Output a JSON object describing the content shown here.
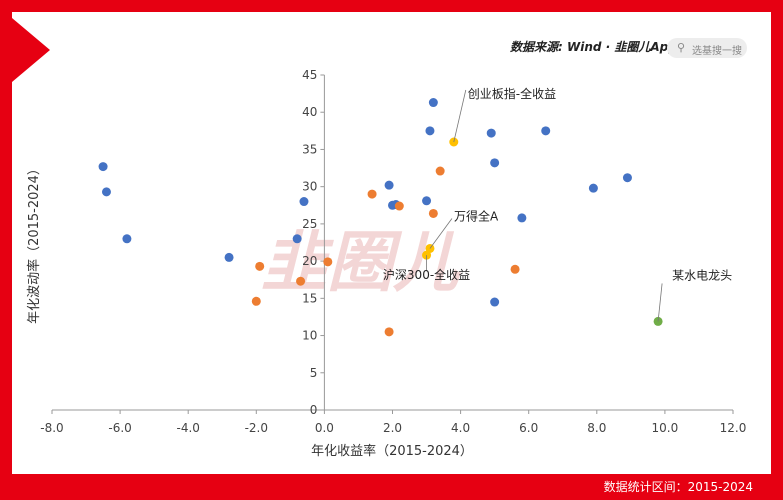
{
  "header": {
    "source_text": "数据来源: Wind · 韭圈儿App",
    "search_placeholder": "选基搜一搜",
    "search_icon": "search-icon"
  },
  "footer": {
    "range_text": "数据统计区间：2015-2024"
  },
  "watermark": {
    "text": "韭圈儿",
    "color": "#f3d6d6"
  },
  "colors": {
    "frame": "#e60012",
    "blue": "#4472c4",
    "orange": "#ed7d31",
    "yellow": "#ffc000",
    "green": "#70ad47"
  },
  "chart_data": {
    "type": "scatter",
    "xlabel": "年化收益率（2015-2024）",
    "ylabel": "年化波动率（2015-2024）",
    "xlim": [
      -8,
      12
    ],
    "ylim": [
      0,
      45
    ],
    "x_ticks": [
      "-8.0",
      "-6.0",
      "-4.0",
      "-2.0",
      "0.0",
      "2.0",
      "4.0",
      "6.0",
      "8.0",
      "10.0",
      "12.0"
    ],
    "y_ticks": [
      "0",
      "5",
      "10",
      "15",
      "20",
      "25",
      "30",
      "35",
      "40",
      "45"
    ],
    "grid": false,
    "series": [
      {
        "color": "#4472c4",
        "points": [
          [
            -6.5,
            32.7
          ],
          [
            -6.4,
            29.3
          ],
          [
            -5.8,
            23.0
          ],
          [
            -2.8,
            20.5
          ],
          [
            -0.8,
            23.0
          ],
          [
            -0.6,
            28.0
          ],
          [
            1.9,
            30.2
          ],
          [
            2.0,
            27.5
          ],
          [
            2.1,
            27.6
          ],
          [
            3.0,
            28.1
          ],
          [
            3.1,
            37.5
          ],
          [
            3.2,
            41.3
          ],
          [
            4.9,
            37.2
          ],
          [
            5.0,
            33.2
          ],
          [
            5.0,
            14.5
          ],
          [
            5.8,
            25.8
          ],
          [
            6.5,
            37.5
          ],
          [
            7.9,
            29.8
          ],
          [
            8.9,
            31.2
          ]
        ]
      },
      {
        "color": "#ed7d31",
        "points": [
          [
            -2.0,
            14.6
          ],
          [
            -1.9,
            19.3
          ],
          [
            -0.7,
            17.3
          ],
          [
            0.1,
            19.9
          ],
          [
            1.4,
            29.0
          ],
          [
            1.9,
            10.5
          ],
          [
            2.2,
            27.4
          ],
          [
            3.2,
            26.4
          ],
          [
            3.4,
            32.1
          ],
          [
            5.6,
            18.9
          ]
        ]
      },
      {
        "color": "#ffc000",
        "points": [
          [
            3.8,
            36.0
          ],
          [
            3.1,
            21.7
          ],
          [
            3.0,
            20.8
          ]
        ]
      },
      {
        "color": "#70ad47",
        "points": [
          [
            9.8,
            11.9
          ]
        ]
      }
    ],
    "annotations": [
      {
        "text": "创业板指-全收益",
        "x": 3.8,
        "y": 36.0
      },
      {
        "text": "万得全A",
        "x": 3.1,
        "y": 21.7
      },
      {
        "text": "沪深300-全收益",
        "x": 3.0,
        "y": 20.8
      },
      {
        "text": "某水电龙头",
        "x": 9.8,
        "y": 11.9
      }
    ]
  }
}
